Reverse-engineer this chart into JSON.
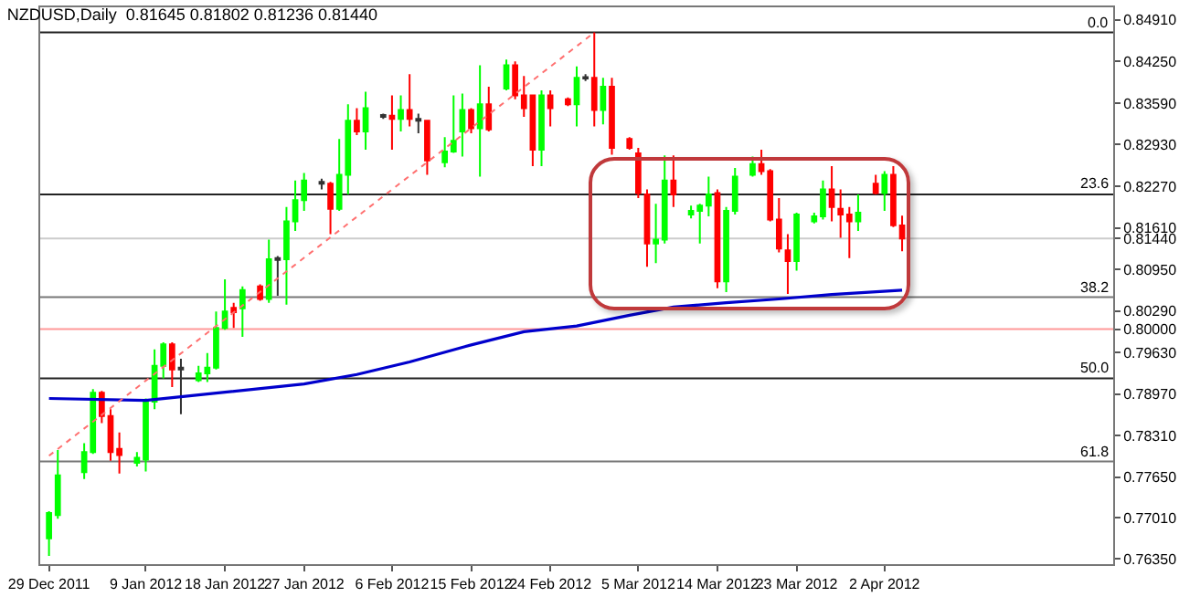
{
  "chart_data": {
    "type": "candlestick",
    "title": "NZDUSD,Daily  0.81645 0.81802 0.81236 0.81440",
    "x": [
      "2011-12-29",
      "2011-12-30",
      "2012-01-02",
      "2012-01-03",
      "2012-01-04",
      "2012-01-05",
      "2012-01-06",
      "2012-01-08",
      "2012-01-09",
      "2012-01-10",
      "2012-01-11",
      "2012-01-12",
      "2012-01-13",
      "2012-01-15",
      "2012-01-16",
      "2012-01-17",
      "2012-01-18",
      "2012-01-19",
      "2012-01-20",
      "2012-01-22",
      "2012-01-23",
      "2012-01-24",
      "2012-01-25",
      "2012-01-26",
      "2012-01-27",
      "2012-01-29",
      "2012-01-30",
      "2012-01-31",
      "2012-02-01",
      "2012-02-02",
      "2012-02-03",
      "2012-02-05",
      "2012-02-06",
      "2012-02-07",
      "2012-02-08",
      "2012-02-09",
      "2012-02-10",
      "2012-02-12",
      "2012-02-13",
      "2012-02-14",
      "2012-02-15",
      "2012-02-16",
      "2012-02-17",
      "2012-02-19",
      "2012-02-20",
      "2012-02-21",
      "2012-02-22",
      "2012-02-23",
      "2012-02-24",
      "2012-02-26",
      "2012-02-27",
      "2012-02-28",
      "2012-02-29",
      "2012-03-01",
      "2012-03-02",
      "2012-03-04",
      "2012-03-05",
      "2012-03-06",
      "2012-03-07",
      "2012-03-08",
      "2012-03-09",
      "2012-03-11",
      "2012-03-12",
      "2012-03-13",
      "2012-03-14",
      "2012-03-15",
      "2012-03-16",
      "2012-03-18",
      "2012-03-19",
      "2012-03-20",
      "2012-03-21",
      "2012-03-22",
      "2012-03-23",
      "2012-03-25",
      "2012-03-26",
      "2012-03-27",
      "2012-03-28",
      "2012-03-29",
      "2012-03-30",
      "2012-04-01",
      "2012-04-02",
      "2012-04-03",
      "2012-04-04"
    ],
    "ohlc": [
      [
        0.7668,
        0.7711,
        0.764,
        0.7708
      ],
      [
        0.7705,
        0.7808,
        0.7699,
        0.7768
      ],
      [
        0.7773,
        0.7819,
        0.7762,
        0.7805
      ],
      [
        0.7805,
        0.7905,
        0.7802,
        0.7899
      ],
      [
        0.7899,
        0.7902,
        0.7851,
        0.7862
      ],
      [
        0.7862,
        0.7873,
        0.7791,
        0.7805
      ],
      [
        0.781,
        0.7836,
        0.7771,
        0.78
      ],
      [
        0.7788,
        0.7805,
        0.7782,
        0.7796
      ],
      [
        0.7793,
        0.789,
        0.7774,
        0.7885
      ],
      [
        0.7885,
        0.7968,
        0.7873,
        0.7942
      ],
      [
        0.7942,
        0.7979,
        0.7922,
        0.7976
      ],
      [
        0.7976,
        0.7979,
        0.7908,
        0.7936
      ],
      [
        0.7936,
        0.7953,
        0.7865,
        0.7939
      ],
      [
        0.7919,
        0.7942,
        0.7916,
        0.793
      ],
      [
        0.793,
        0.7962,
        0.7916,
        0.7939
      ],
      [
        0.7939,
        0.8028,
        0.7936,
        0.8002
      ],
      [
        0.8002,
        0.8079,
        0.7999,
        0.8028
      ],
      [
        0.8034,
        0.8042,
        0.8002,
        0.8027
      ],
      [
        0.8033,
        0.8068,
        0.7988,
        0.8062
      ],
      [
        0.8068,
        0.8071,
        0.8045,
        0.8048
      ],
      [
        0.8048,
        0.8142,
        0.8042,
        0.8111
      ],
      [
        0.811,
        0.8116,
        0.8053,
        0.8113
      ],
      [
        0.8111,
        0.8194,
        0.8039,
        0.8171
      ],
      [
        0.8171,
        0.8236,
        0.8156,
        0.8205
      ],
      [
        0.8205,
        0.8248,
        0.8188,
        0.8236
      ],
      [
        0.8231,
        0.8239,
        0.8222,
        0.8234
      ],
      [
        0.8231,
        0.8234,
        0.8151,
        0.8191
      ],
      [
        0.8191,
        0.8302,
        0.8188,
        0.8245
      ],
      [
        0.8245,
        0.8357,
        0.8214,
        0.8331
      ],
      [
        0.8331,
        0.8351,
        0.8308,
        0.8314
      ],
      [
        0.8314,
        0.8377,
        0.8285,
        0.8351
      ],
      [
        0.8337,
        0.8342,
        0.8334,
        0.834
      ],
      [
        0.8339,
        0.8371,
        0.8285,
        0.8334
      ],
      [
        0.8334,
        0.8371,
        0.8314,
        0.8348
      ],
      [
        0.8348,
        0.8405,
        0.8322,
        0.8334
      ],
      [
        0.8334,
        0.8342,
        0.8311,
        0.8331
      ],
      [
        0.8331,
        0.8331,
        0.8245,
        0.8268
      ],
      [
        0.8265,
        0.8305,
        0.8257,
        0.8282
      ],
      [
        0.8282,
        0.8371,
        0.828,
        0.8299
      ],
      [
        0.8314,
        0.8374,
        0.8274,
        0.8348
      ],
      [
        0.8348,
        0.8351,
        0.8311,
        0.8319
      ],
      [
        0.8319,
        0.8419,
        0.8242,
        0.8357
      ],
      [
        0.8357,
        0.8385,
        0.8314,
        0.8317
      ],
      [
        0.8382,
        0.8428,
        0.8379,
        0.8419
      ],
      [
        0.8419,
        0.8425,
        0.8365,
        0.8371
      ],
      [
        0.8371,
        0.8402,
        0.8337,
        0.8351
      ],
      [
        0.8371,
        0.8371,
        0.8259,
        0.8285
      ],
      [
        0.8285,
        0.8379,
        0.8259,
        0.8371
      ],
      [
        0.8371,
        0.8379,
        0.8322,
        0.8351
      ],
      [
        0.8365,
        0.8368,
        0.8354,
        0.8357
      ],
      [
        0.8357,
        0.8417,
        0.8322,
        0.8399
      ],
      [
        0.8398,
        0.8405,
        0.8394,
        0.84
      ],
      [
        0.8399,
        0.8471,
        0.8322,
        0.8348
      ],
      [
        0.8348,
        0.8399,
        0.8325,
        0.8385
      ],
      [
        0.8385,
        0.8399,
        0.8277,
        0.8288
      ],
      [
        0.8302,
        0.8305,
        0.8285,
        0.8288
      ],
      [
        0.8279,
        0.8288,
        0.8208,
        0.8216
      ],
      [
        0.8214,
        0.8222,
        0.8099,
        0.8136
      ],
      [
        0.8136,
        0.8199,
        0.8105,
        0.8142
      ],
      [
        0.8142,
        0.8276,
        0.8136,
        0.8236
      ],
      [
        0.8236,
        0.8276,
        0.8194,
        0.8214
      ],
      [
        0.8182,
        0.8196,
        0.8176,
        0.8188
      ],
      [
        0.8188,
        0.8199,
        0.8136,
        0.8196
      ],
      [
        0.8196,
        0.8242,
        0.8179,
        0.8214
      ],
      [
        0.8216,
        0.8222,
        0.8065,
        0.8076
      ],
      [
        0.8076,
        0.8194,
        0.8059,
        0.8188
      ],
      [
        0.8188,
        0.8256,
        0.8182,
        0.8242
      ],
      [
        0.8245,
        0.8274,
        0.8242,
        0.8262
      ],
      [
        0.8262,
        0.8285,
        0.8245,
        0.8251
      ],
      [
        0.8251,
        0.8254,
        0.8171,
        0.8174
      ],
      [
        0.8174,
        0.8208,
        0.8122,
        0.8128
      ],
      [
        0.8125,
        0.8151,
        0.8056,
        0.8108
      ],
      [
        0.8108,
        0.8185,
        0.8093,
        0.8182
      ],
      [
        0.8171,
        0.8185,
        0.8168,
        0.8179
      ],
      [
        0.8179,
        0.8236,
        0.8174,
        0.8222
      ],
      [
        0.8222,
        0.8259,
        0.8171,
        0.8194
      ],
      [
        0.8191,
        0.8222,
        0.8145,
        0.8182
      ],
      [
        0.8182,
        0.8194,
        0.8113,
        0.8171
      ],
      [
        0.8171,
        0.8214,
        0.8156,
        0.8185
      ],
      [
        0.8231,
        0.8245,
        0.8214,
        0.8216
      ],
      [
        0.8216,
        0.8251,
        0.8188,
        0.8245
      ],
      [
        0.8245,
        0.8259,
        0.8162,
        0.8165
      ],
      [
        0.81645,
        0.81802,
        0.81236,
        0.8144
      ]
    ],
    "colors": [
      "#00ff00",
      "#00ff00",
      "#00ff00",
      "#00ff00",
      "#ff0000",
      "#ff0000",
      "#ff0000",
      "#00ff00",
      "#00ff00",
      "#00ff00",
      "#00ff00",
      "#ff0000",
      "#333333",
      "#00ff00",
      "#00ff00",
      "#00ff00",
      "#00ff00",
      "#ff0000",
      "#00ff00",
      "#ff0000",
      "#00ff00",
      "#333333",
      "#00ff00",
      "#00ff00",
      "#00ff00",
      "#333333",
      "#ff0000",
      "#00ff00",
      "#00ff00",
      "#ff0000",
      "#00ff00",
      "#333333",
      "#ff0000",
      "#00ff00",
      "#ff0000",
      "#333333",
      "#ff0000",
      "#00ff00",
      "#00ff00",
      "#00ff00",
      "#ff0000",
      "#00ff00",
      "#ff0000",
      "#00ff00",
      "#ff0000",
      "#ff0000",
      "#ff0000",
      "#00ff00",
      "#ff0000",
      "#ff0000",
      "#00ff00",
      "#333333",
      "#ff0000",
      "#00ff00",
      "#ff0000",
      "#ff0000",
      "#ff0000",
      "#ff0000",
      "#00ff00",
      "#00ff00",
      "#ff0000",
      "#00ff00",
      "#00ff00",
      "#00ff00",
      "#ff0000",
      "#00ff00",
      "#00ff00",
      "#00ff00",
      "#ff0000",
      "#ff0000",
      "#ff0000",
      "#ff0000",
      "#00ff00",
      "#00ff00",
      "#00ff00",
      "#ff0000",
      "#ff0000",
      "#ff0000",
      "#00ff00",
      "#ff0000",
      "#00ff00",
      "#ff0000",
      "#ff0000"
    ],
    "series": [
      {
        "type": "line",
        "color": "#0000cc",
        "x": [
          "2011-12-29",
          "2012-01-09",
          "2012-01-18",
          "2012-01-27",
          "2012-02-02",
          "2012-02-08",
          "2012-02-15",
          "2012-02-21",
          "2012-02-27",
          "2012-03-04",
          "2012-03-09",
          "2012-03-15",
          "2012-03-21",
          "2012-03-27",
          "2012-04-04"
        ],
        "values": [
          0.789,
          0.7887,
          0.79,
          0.7913,
          0.7928,
          0.7948,
          0.7975,
          0.7996,
          0.8005,
          0.8022,
          0.8035,
          0.8042,
          0.8048,
          0.8055,
          0.8062
        ]
      },
      {
        "type": "line",
        "color": "#ff7070",
        "line_style": "dotted",
        "x": [
          "2011-12-29",
          "2012-02-29"
        ],
        "values": [
          0.7799,
          0.8471
        ]
      }
    ],
    "xlim": [
      "2011-12-28",
      "2012-04-28"
    ],
    "xticks": [
      {
        "value": "2011-12-29",
        "label": "29 Dec 2011"
      },
      {
        "value": "2012-01-09",
        "label": "9 Jan 2012"
      },
      {
        "value": "2012-01-18",
        "label": "18 Jan 2012"
      },
      {
        "value": "2012-01-27",
        "label": "27 Jan 2012"
      },
      {
        "value": "2012-02-06",
        "label": "6 Feb 2012"
      },
      {
        "value": "2012-02-15",
        "label": "15 Feb 2012"
      },
      {
        "value": "2012-02-24",
        "label": "24 Feb 2012"
      },
      {
        "value": "2012-03-05",
        "label": "5 Mar 2012"
      },
      {
        "value": "2012-03-14",
        "label": "14 Mar 2012"
      },
      {
        "value": "2012-03-23",
        "label": "23 Mar 2012"
      },
      {
        "value": "2012-04-02",
        "label": "2 Apr 2012"
      }
    ],
    "ylim": [
      0.7627,
      0.8511
    ],
    "yticks": [
      {
        "value": 0.8491,
        "label": "0.84910"
      },
      {
        "value": 0.8425,
        "label": "0.84250"
      },
      {
        "value": 0.8359,
        "label": "0.83590"
      },
      {
        "value": 0.8293,
        "label": "0.82930"
      },
      {
        "value": 0.8227,
        "label": "0.82270"
      },
      {
        "value": 0.8161,
        "label": "0.81610"
      },
      {
        "value": 0.8144,
        "label": "0.81440"
      },
      {
        "value": 0.8095,
        "label": "0.80950"
      },
      {
        "value": 0.8029,
        "label": "0.80290"
      },
      {
        "value": 0.8,
        "label": "0.80000"
      },
      {
        "value": 0.7963,
        "label": "0.79630"
      },
      {
        "value": 0.7897,
        "label": "0.78970"
      },
      {
        "value": 0.7831,
        "label": "0.78310"
      },
      {
        "value": 0.7765,
        "label": "0.77650"
      },
      {
        "value": 0.7701,
        "label": "0.77010"
      },
      {
        "value": 0.7635,
        "label": "0.76350"
      }
    ],
    "ref_lines": [
      {
        "axis": "y",
        "value": 0.8471,
        "color": "#222222"
      },
      {
        "axis": "y",
        "value": 0.8214,
        "color": "#222222"
      },
      {
        "axis": "y",
        "value": 0.8051,
        "color": "#777777"
      },
      {
        "axis": "y",
        "value": 0.7922,
        "color": "#222222"
      },
      {
        "axis": "y",
        "value": 0.779,
        "color": "#777777"
      },
      {
        "axis": "y",
        "value": 0.8144,
        "color": "#cccccc"
      },
      {
        "axis": "y",
        "value": 0.8,
        "color": "#ff9999"
      }
    ],
    "annotations": [
      {
        "text": "0.0",
        "y": 0.8471
      },
      {
        "text": "23.6",
        "y": 0.8214
      },
      {
        "text": "38.2",
        "y": 0.8051
      },
      {
        "text": "50.0",
        "y": 0.7922
      },
      {
        "text": "61.8",
        "y": 0.779
      }
    ]
  }
}
